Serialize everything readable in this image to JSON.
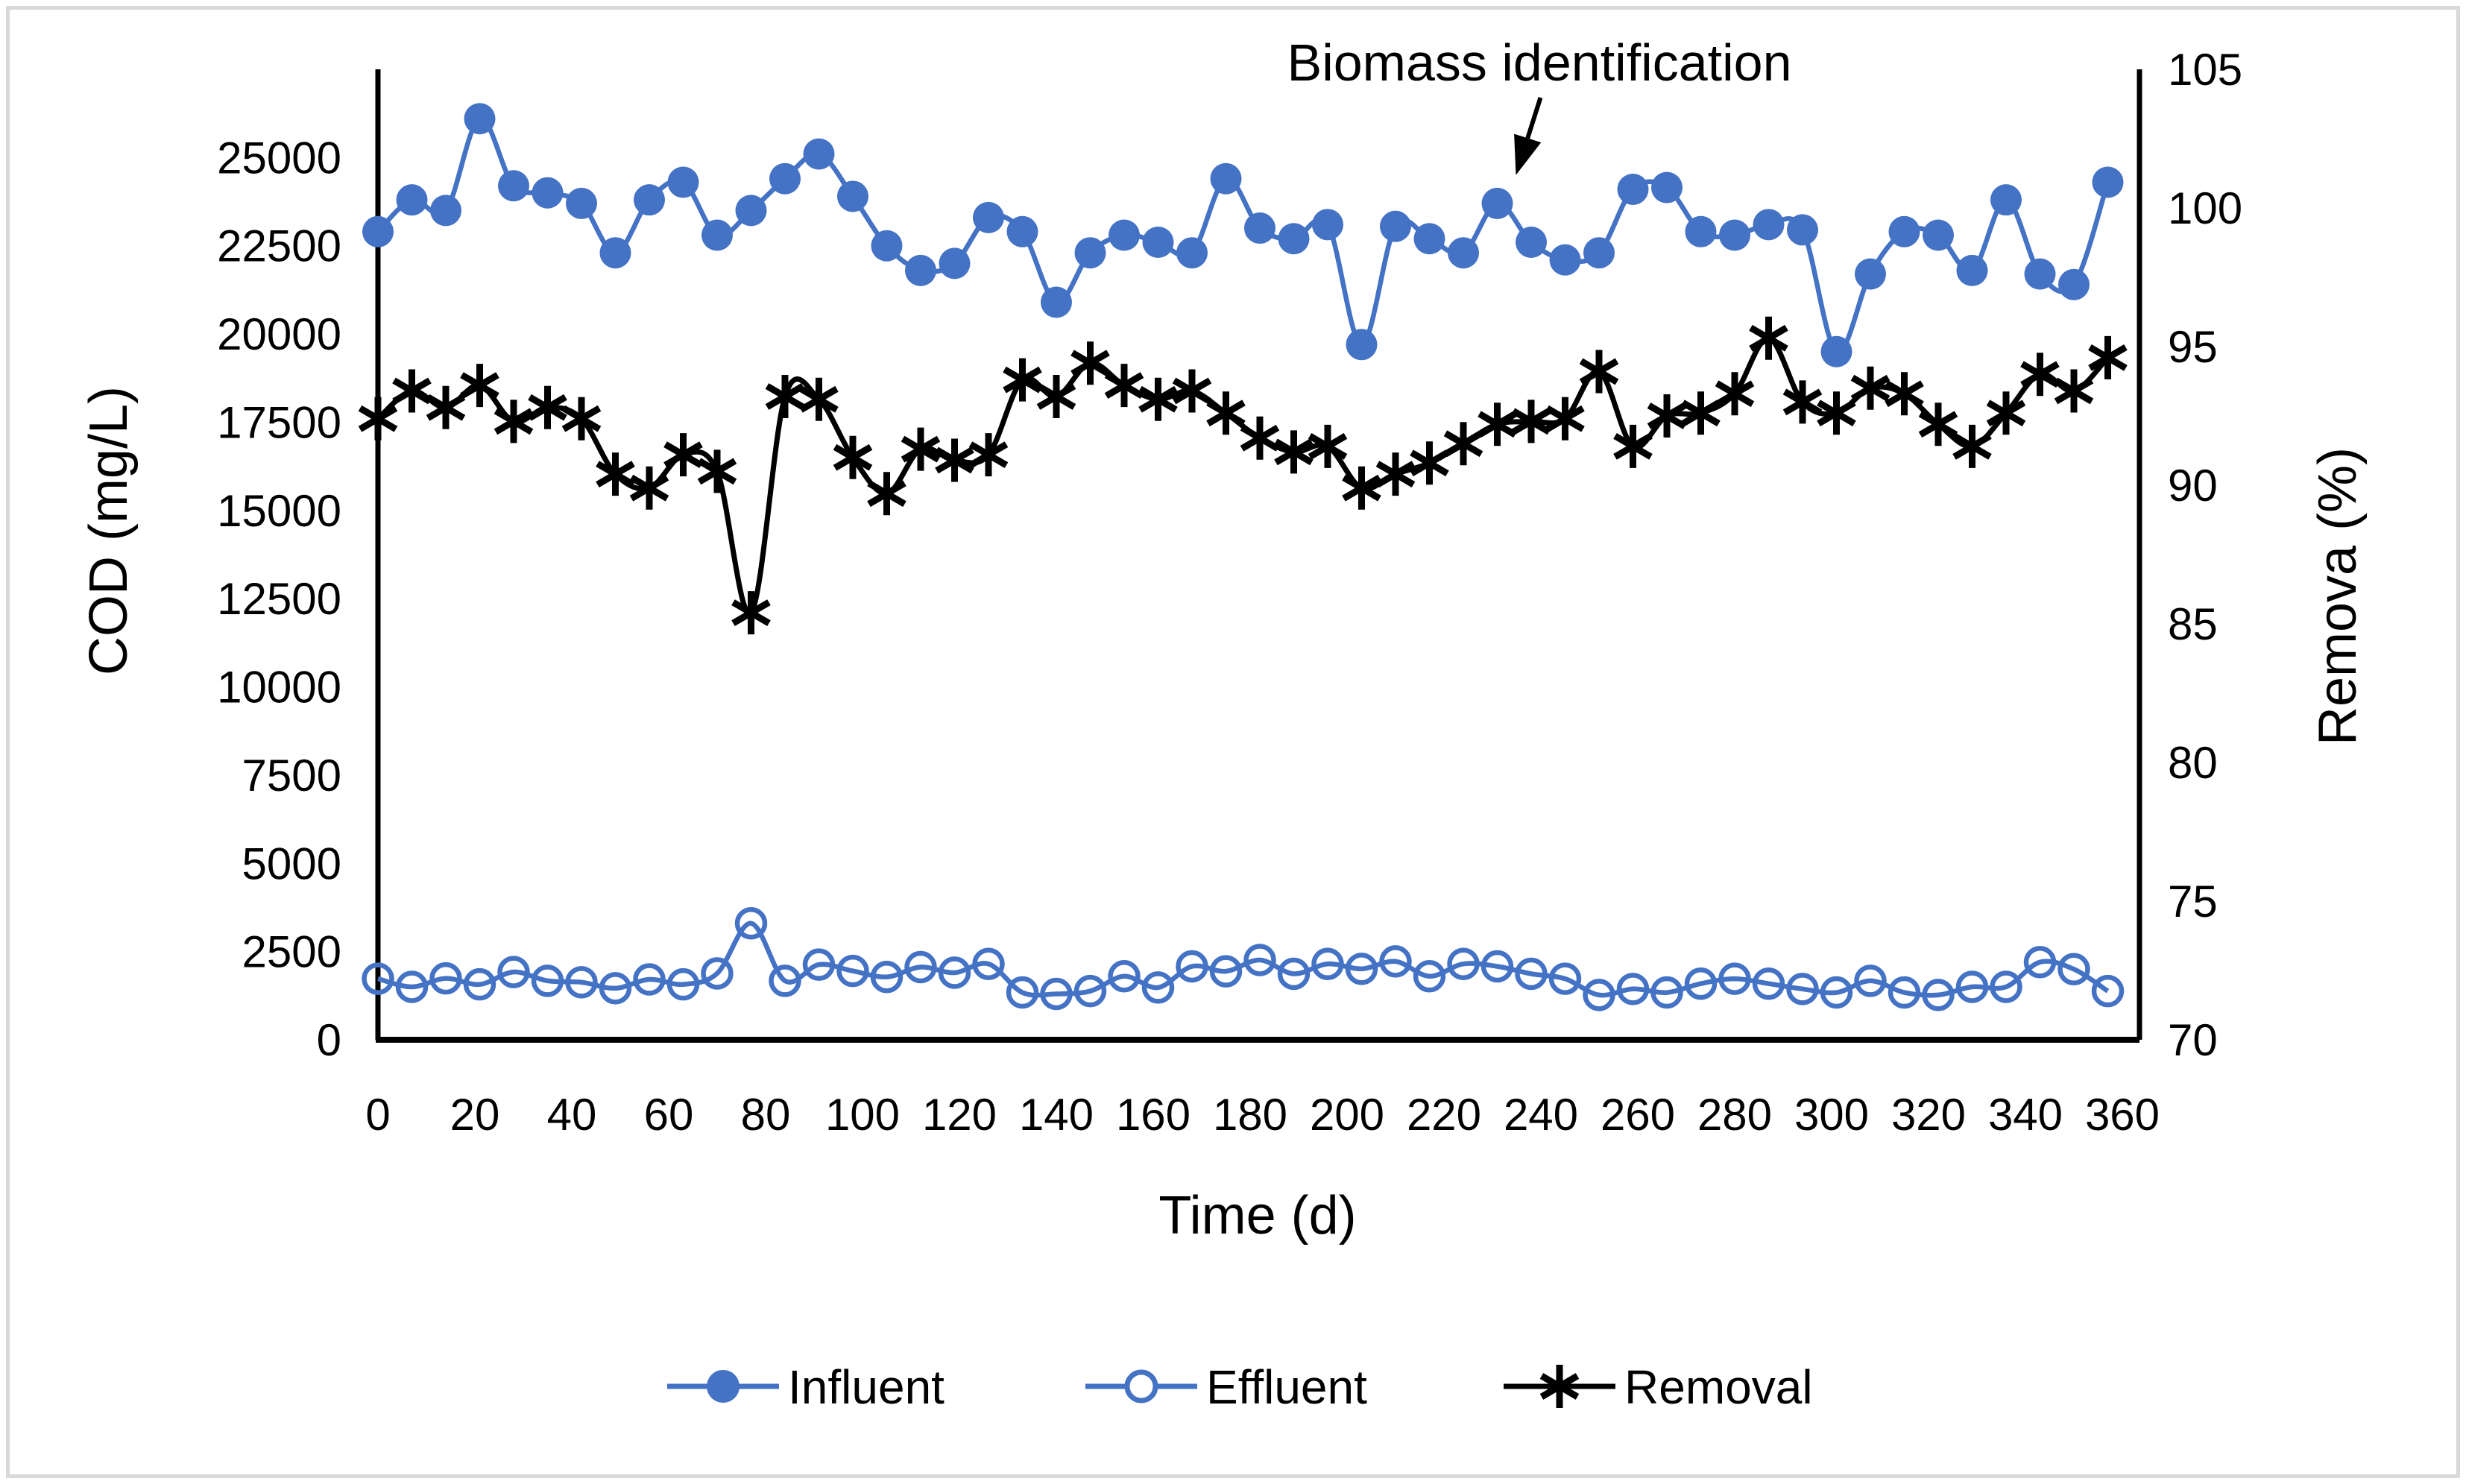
{
  "figure": {
    "background": "#ffffff",
    "border_color": "#d9d9d9"
  },
  "colors": {
    "series_blue": "#4472C4",
    "series_black": "#000000",
    "text": "#000000"
  },
  "chart_data": {
    "type": "line",
    "title": "",
    "xlabel": "Time (d)",
    "ylabel_left": "COD (mg/L)",
    "ylabel_right": "Remova (%)",
    "x_ticks": [
      0,
      20,
      40,
      60,
      80,
      100,
      120,
      140,
      160,
      180,
      200,
      220,
      240,
      260,
      280,
      300,
      320,
      340,
      360
    ],
    "y_left_ticks": [
      0,
      2500,
      5000,
      7500,
      10000,
      12500,
      15000,
      17500,
      20000,
      22500,
      25000
    ],
    "y_right_ticks": [
      70,
      75,
      80,
      85,
      90,
      95,
      100,
      105
    ],
    "x_range": [
      0,
      363.5
    ],
    "y_left_range": [
      0,
      27500
    ],
    "y_right_range": [
      70,
      105
    ],
    "grid": "off",
    "legend_position": "bottom",
    "x": [
      0,
      7,
      14,
      21,
      28,
      35,
      42,
      49,
      56,
      63,
      70,
      77,
      84,
      91,
      98,
      105,
      112,
      119,
      126,
      133,
      140,
      147,
      154,
      161,
      168,
      175,
      182,
      189,
      196,
      203,
      210,
      217,
      224,
      231,
      238,
      245,
      252,
      259,
      266,
      273,
      280,
      287,
      294,
      301,
      308,
      315,
      322,
      329,
      336,
      343,
      350,
      357
    ],
    "series": [
      {
        "name": "Influent",
        "axis": "left",
        "color": "#4472C4",
        "marker": "filled-circle",
        "values": [
          22900,
          23800,
          23500,
          26100,
          24200,
          24000,
          23700,
          22300,
          23800,
          24300,
          22800,
          23500,
          24400,
          25100,
          23900,
          22500,
          21800,
          22000,
          23300,
          22900,
          20900,
          22300,
          22800,
          22600,
          22300,
          24400,
          23000,
          22700,
          23100,
          19700,
          23050,
          22700,
          22300,
          23700,
          22600,
          22100,
          22300,
          24100,
          24150,
          22900,
          22800,
          23100,
          22950,
          19500,
          21700,
          22900,
          22800,
          21800,
          23800,
          21700,
          21400,
          24300
        ]
      },
      {
        "name": "Effluent",
        "axis": "left",
        "color": "#4472C4",
        "marker": "open-circle",
        "values": [
          1730,
          1500,
          1740,
          1570,
          1920,
          1670,
          1630,
          1460,
          1710,
          1570,
          1880,
          3300,
          1670,
          2130,
          1950,
          1780,
          2060,
          1900,
          2150,
          1340,
          1300,
          1380,
          1800,
          1480,
          2080,
          1940,
          2260,
          1870,
          2150,
          2010,
          2220,
          1800,
          2150,
          2080,
          1870,
          1730,
          1270,
          1440,
          1340,
          1590,
          1730,
          1590,
          1440,
          1340,
          1670,
          1340,
          1270,
          1500,
          1500,
          2200,
          2000,
          1380
        ]
      },
      {
        "name": "Removal",
        "axis": "right",
        "color": "#000000",
        "marker": "asterisk",
        "values": [
          92.4,
          93.4,
          92.8,
          93.6,
          92.3,
          92.8,
          92.4,
          90.4,
          89.9,
          91.1,
          90.5,
          85.4,
          93.2,
          93.1,
          91.0,
          89.7,
          91.3,
          90.9,
          91.1,
          93.8,
          93.2,
          94.4,
          93.6,
          93.1,
          93.4,
          92.6,
          91.7,
          91.2,
          91.4,
          89.9,
          90.4,
          90.8,
          91.5,
          92.2,
          92.3,
          92.4,
          94.1,
          91.4,
          92.5,
          92.6,
          93.3,
          95.3,
          93.0,
          92.6,
          93.5,
          93.3,
          92.2,
          91.4,
          92.6,
          94.0,
          93.4,
          94.6
        ]
      }
    ],
    "annotation": {
      "text": "Biomass identification",
      "target_t": 231,
      "target_value": 23700
    }
  },
  "legend": {
    "items": [
      {
        "label": "Influent",
        "icon": "filled-circle-marker-icon",
        "color": "#4472C4"
      },
      {
        "label": "Effluent",
        "icon": "open-circle-marker-icon",
        "color": "#4472C4"
      },
      {
        "label": "Removal",
        "icon": "asterisk-marker-icon",
        "color": "#000000"
      }
    ]
  }
}
